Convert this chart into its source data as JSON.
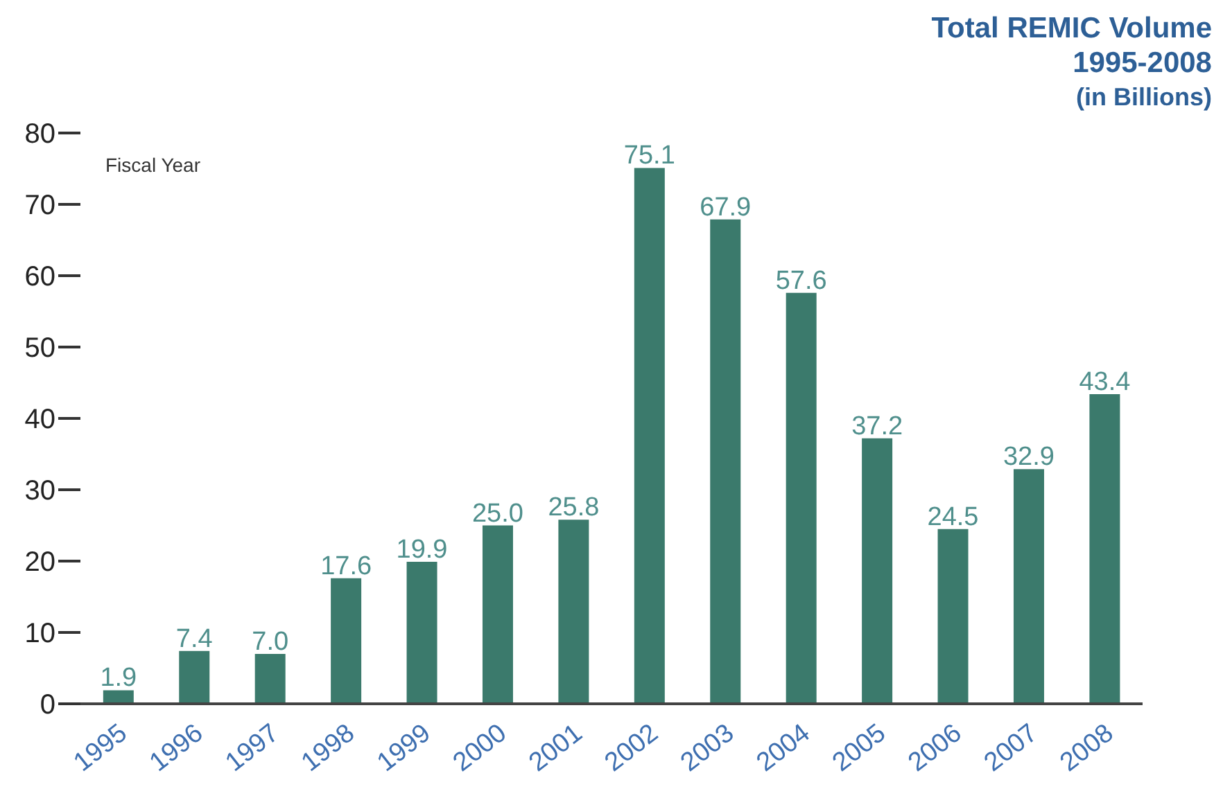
{
  "chart_data": {
    "type": "bar",
    "title": "Total REMIC Volume",
    "subtitle": "1995-2008",
    "annotations": [
      "(in Billions)",
      "Fiscal Year"
    ],
    "categories": [
      "1995",
      "1996",
      "1997",
      "1998",
      "1999",
      "2000",
      "2001",
      "2002",
      "2003",
      "2004",
      "2005",
      "2006",
      "2007",
      "2008"
    ],
    "values": [
      1.9,
      7.4,
      7.0,
      17.6,
      19.9,
      25.0,
      25.8,
      75.1,
      67.9,
      57.6,
      37.2,
      24.5,
      32.9,
      43.4
    ],
    "value_labels": [
      "1.9",
      "7.4",
      "7.0",
      "17.6",
      "19.9",
      "25.0",
      "25.8",
      "75.1",
      "67.9",
      "57.6",
      "37.2",
      "24.5",
      "32.9",
      "43.4"
    ],
    "color": "#3b7a6c",
    "ylim": [
      0,
      80
    ],
    "yticks": [
      0,
      10,
      20,
      30,
      40,
      50,
      60,
      70,
      80
    ],
    "grid": false,
    "legend": false
  }
}
